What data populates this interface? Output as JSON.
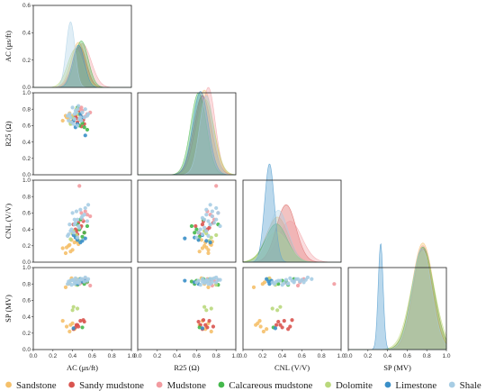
{
  "chart_data": {
    "type": "scatter",
    "subtype": "pairplot-lower-triangle-with-kde-diagonal",
    "variables": [
      "AC (μs/ft)",
      "R25 (Ω)",
      "CNL (V/V)",
      "SP (MV)"
    ],
    "axis_labels": {
      "x": [
        "AC (μs/ft)",
        "R25 (Ω)",
        "CNL (V/V)",
        "SP (MV)"
      ],
      "y": [
        "AC (μs/ft)",
        "R25 (Ω)",
        "CNL (V/V)",
        "SP (MV)"
      ]
    },
    "xlim": [
      0,
      1
    ],
    "ylim": [
      0,
      1
    ],
    "ticks": [
      "0.0",
      "0.2",
      "0.4",
      "0.6",
      "0.8",
      "1.0"
    ],
    "legend_position": "bottom",
    "series": [
      {
        "name": "Sandstone",
        "color": "#f5c06a",
        "kde_peaks": {
          "AC (μs/ft)": [
            0.46,
            0.075,
            0.33
          ],
          "R25 (Ω)": [
            0.68,
            0.09,
            0.62
          ],
          "CNL (V/V)": [
            0.35,
            0.11,
            0.33
          ],
          "SP (MV)": [
            0.76,
            0.11,
            0.78
          ]
        },
        "points": [
          [
            0.36,
            0.68,
            0.2,
            0.8
          ],
          [
            0.4,
            0.72,
            0.15,
            0.32
          ],
          [
            0.34,
            0.7,
            0.18,
            0.28
          ],
          [
            0.46,
            0.74,
            0.22,
            0.82
          ],
          [
            0.3,
            0.66,
            0.17,
            0.35
          ],
          [
            0.38,
            0.63,
            0.13,
            0.3
          ],
          [
            0.44,
            0.76,
            0.25,
            0.86
          ],
          [
            0.42,
            0.69,
            0.24,
            0.25
          ],
          [
            0.33,
            0.72,
            0.11,
            0.76
          ],
          [
            0.39,
            0.65,
            0.27,
            0.87
          ],
          [
            0.37,
            0.75,
            0.21,
            0.22
          ]
        ]
      },
      {
        "name": "Sandy mudstone",
        "color": "#d9544f",
        "kde_peaks": {
          "AC (μs/ft)": [
            0.47,
            0.07,
            0.3
          ],
          "R25 (Ω)": [
            0.66,
            0.09,
            0.58
          ],
          "CNL (V/V)": [
            0.44,
            0.1,
            0.42
          ],
          "SP (MV)": [
            0.76,
            0.1,
            0.74
          ]
        },
        "points": [
          [
            0.44,
            0.69,
            0.38,
            0.3
          ],
          [
            0.48,
            0.73,
            0.42,
            0.35
          ],
          [
            0.41,
            0.66,
            0.46,
            0.25
          ],
          [
            0.52,
            0.62,
            0.36,
            0.34
          ],
          [
            0.46,
            0.77,
            0.48,
            0.28
          ],
          [
            0.49,
            0.59,
            0.44,
            0.82
          ],
          [
            0.43,
            0.71,
            0.4,
            0.27
          ],
          [
            0.51,
            0.67,
            0.5,
            0.36
          ],
          [
            0.45,
            0.64,
            0.34,
            0.3
          ]
        ]
      },
      {
        "name": "Mudstone",
        "color": "#f29ba0",
        "kde_peaks": {
          "AC (μs/ft)": [
            0.5,
            0.09,
            0.32
          ],
          "R25 (Ω)": [
            0.72,
            0.07,
            0.64
          ],
          "CNL (V/V)": [
            0.48,
            0.12,
            0.3
          ],
          "SP (MV)": [
            0.76,
            0.11,
            0.76
          ]
        },
        "points": [
          [
            0.5,
            0.78,
            0.52,
            0.84
          ],
          [
            0.55,
            0.74,
            0.58,
            0.82
          ],
          [
            0.47,
            0.8,
            0.93,
            0.8
          ],
          [
            0.53,
            0.71,
            0.62,
            0.86
          ],
          [
            0.58,
            0.76,
            0.56,
            0.78
          ],
          [
            0.49,
            0.82,
            0.6,
            0.85
          ]
        ]
      },
      {
        "name": "Calcareous mudstone",
        "color": "#44b84c",
        "kde_peaks": {
          "AC (μs/ft)": [
            0.49,
            0.07,
            0.34
          ],
          "R25 (Ω)": [
            0.62,
            0.08,
            0.6
          ],
          "CNL (V/V)": [
            0.34,
            0.11,
            0.28
          ],
          "SP (MV)": [
            0.76,
            0.11,
            0.75
          ]
        },
        "points": [
          [
            0.47,
            0.6,
            0.4,
            0.84
          ],
          [
            0.52,
            0.58,
            0.36,
            0.8
          ],
          [
            0.45,
            0.82,
            0.46,
            0.79
          ],
          [
            0.5,
            0.63,
            0.31,
            0.27
          ],
          [
            0.55,
            0.55,
            0.44,
            0.83
          ],
          [
            0.48,
            0.67,
            0.52,
            0.86
          ]
        ]
      },
      {
        "name": "Dolomite",
        "color": "#b9d87c",
        "kde_peaks": {
          "AC (μs/ft)": [
            0.43,
            0.08,
            0.28
          ],
          "R25 (Ω)": [
            0.69,
            0.09,
            0.55
          ],
          "CNL (V/V)": [
            0.34,
            0.12,
            0.22
          ],
          "SP (MV)": [
            0.76,
            0.12,
            0.72
          ]
        },
        "points": [
          [
            0.4,
            0.7,
            0.35,
            0.48
          ],
          [
            0.45,
            0.75,
            0.3,
            0.5
          ],
          [
            0.38,
            0.62,
            0.28,
            0.84
          ],
          [
            0.44,
            0.8,
            0.33,
            0.79
          ],
          [
            0.41,
            0.68,
            0.38,
            0.52
          ],
          [
            0.47,
            0.73,
            0.26,
            0.86
          ]
        ]
      },
      {
        "name": "Limestone",
        "color": "#3a8fc8",
        "kde_peaks": {
          "AC (μs/ft)": [
            0.46,
            0.06,
            0.31
          ],
          "R25 (Ω)": [
            0.64,
            0.08,
            0.61
          ],
          "CNL (V/V)": [
            0.27,
            0.05,
            0.72
          ],
          "SP (MV)": [
            0.33,
            0.025,
            0.78
          ]
        },
        "points": [
          [
            0.45,
            0.62,
            0.27,
            0.8
          ],
          [
            0.43,
            0.58,
            0.3,
            0.82
          ],
          [
            0.48,
            0.74,
            0.24,
            0.86
          ],
          [
            0.53,
            0.48,
            0.29,
            0.84
          ],
          [
            0.41,
            0.66,
            0.33,
            0.26
          ],
          [
            0.5,
            0.7,
            0.26,
            0.83
          ]
        ]
      },
      {
        "name": "Shale",
        "color": "#a7cde4",
        "kde_peaks": {
          "AC (μs/ft)": [
            0.38,
            0.045,
            0.48
          ],
          "R25 (Ω)": [
            0.7,
            0.07,
            0.58
          ],
          "CNL (V/V)": [
            0.36,
            0.1,
            0.38
          ],
          "SP (MV)": [
            0.75,
            0.1,
            0.74
          ]
        },
        "points": [
          [
            0.38,
            0.7,
            0.38,
            0.84
          ],
          [
            0.42,
            0.74,
            0.46,
            0.8
          ],
          [
            0.45,
            0.8,
            0.52,
            0.82
          ],
          [
            0.5,
            0.76,
            0.56,
            0.86
          ],
          [
            0.36,
            0.66,
            0.34,
            0.83
          ],
          [
            0.4,
            0.82,
            0.6,
            0.85
          ],
          [
            0.47,
            0.68,
            0.42,
            0.81
          ],
          [
            0.55,
            0.72,
            0.5,
            0.84
          ],
          [
            0.43,
            0.78,
            0.48,
            0.87
          ],
          [
            0.39,
            0.64,
            0.4,
            0.79
          ],
          [
            0.52,
            0.7,
            0.58,
            0.83
          ],
          [
            0.46,
            0.84,
            0.44,
            0.85
          ],
          [
            0.35,
            0.72,
            0.32,
            0.8
          ],
          [
            0.49,
            0.66,
            0.54,
            0.86
          ],
          [
            0.44,
            0.76,
            0.62,
            0.82
          ],
          [
            0.41,
            0.62,
            0.36,
            0.84
          ],
          [
            0.53,
            0.8,
            0.66,
            0.88
          ],
          [
            0.37,
            0.74,
            0.46,
            0.81
          ],
          [
            0.48,
            0.7,
            0.64,
            0.85
          ],
          [
            0.42,
            0.68,
            0.52,
            0.83
          ],
          [
            0.56,
            0.74,
            0.7,
            0.86
          ],
          [
            0.45,
            0.6,
            0.3,
            0.82
          ]
        ]
      }
    ]
  }
}
